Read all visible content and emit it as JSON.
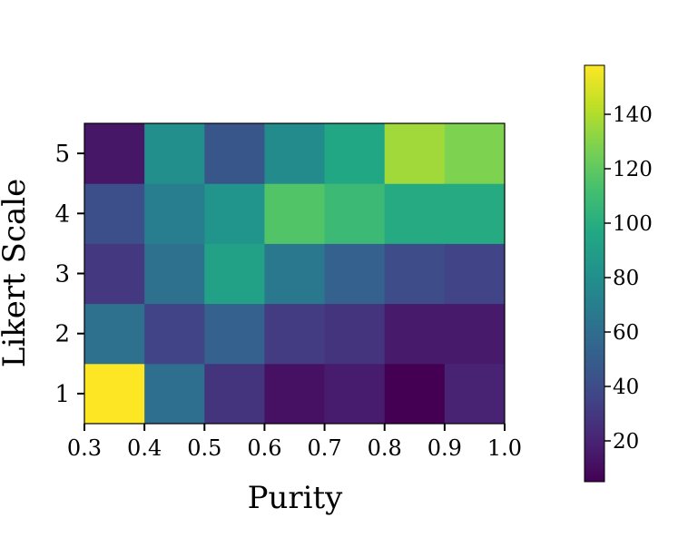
{
  "chart_data": {
    "type": "heatmap",
    "title": "",
    "xlabel": "Purity",
    "ylabel": "Likert Scale",
    "x_edges": [
      0.3,
      0.4,
      0.5,
      0.6,
      0.7,
      0.8,
      0.9,
      1.0
    ],
    "x_tick_labels": [
      "0.3",
      "0.4",
      "0.5",
      "0.6",
      "0.7",
      "0.8",
      "0.9",
      "1.0"
    ],
    "y_categories": [
      1,
      2,
      3,
      4,
      5
    ],
    "y_tick_labels": [
      "1",
      "2",
      "3",
      "4",
      "5"
    ],
    "values": [
      [
        158,
        60,
        28,
        12,
        17,
        5,
        20
      ],
      [
        62,
        36,
        52,
        32,
        28,
        16,
        16
      ],
      [
        30,
        62,
        92,
        66,
        52,
        40,
        36
      ],
      [
        42,
        70,
        84,
        116,
        108,
        98,
        98
      ],
      [
        14,
        80,
        46,
        78,
        96,
        136,
        128
      ]
    ],
    "colormap": "viridis",
    "colorbar": {
      "min": 5,
      "max": 158,
      "ticks": [
        20,
        40,
        60,
        80,
        100,
        120,
        140
      ],
      "tick_labels": [
        "20",
        "40",
        "60",
        "80",
        "100",
        "120",
        "140"
      ]
    }
  }
}
